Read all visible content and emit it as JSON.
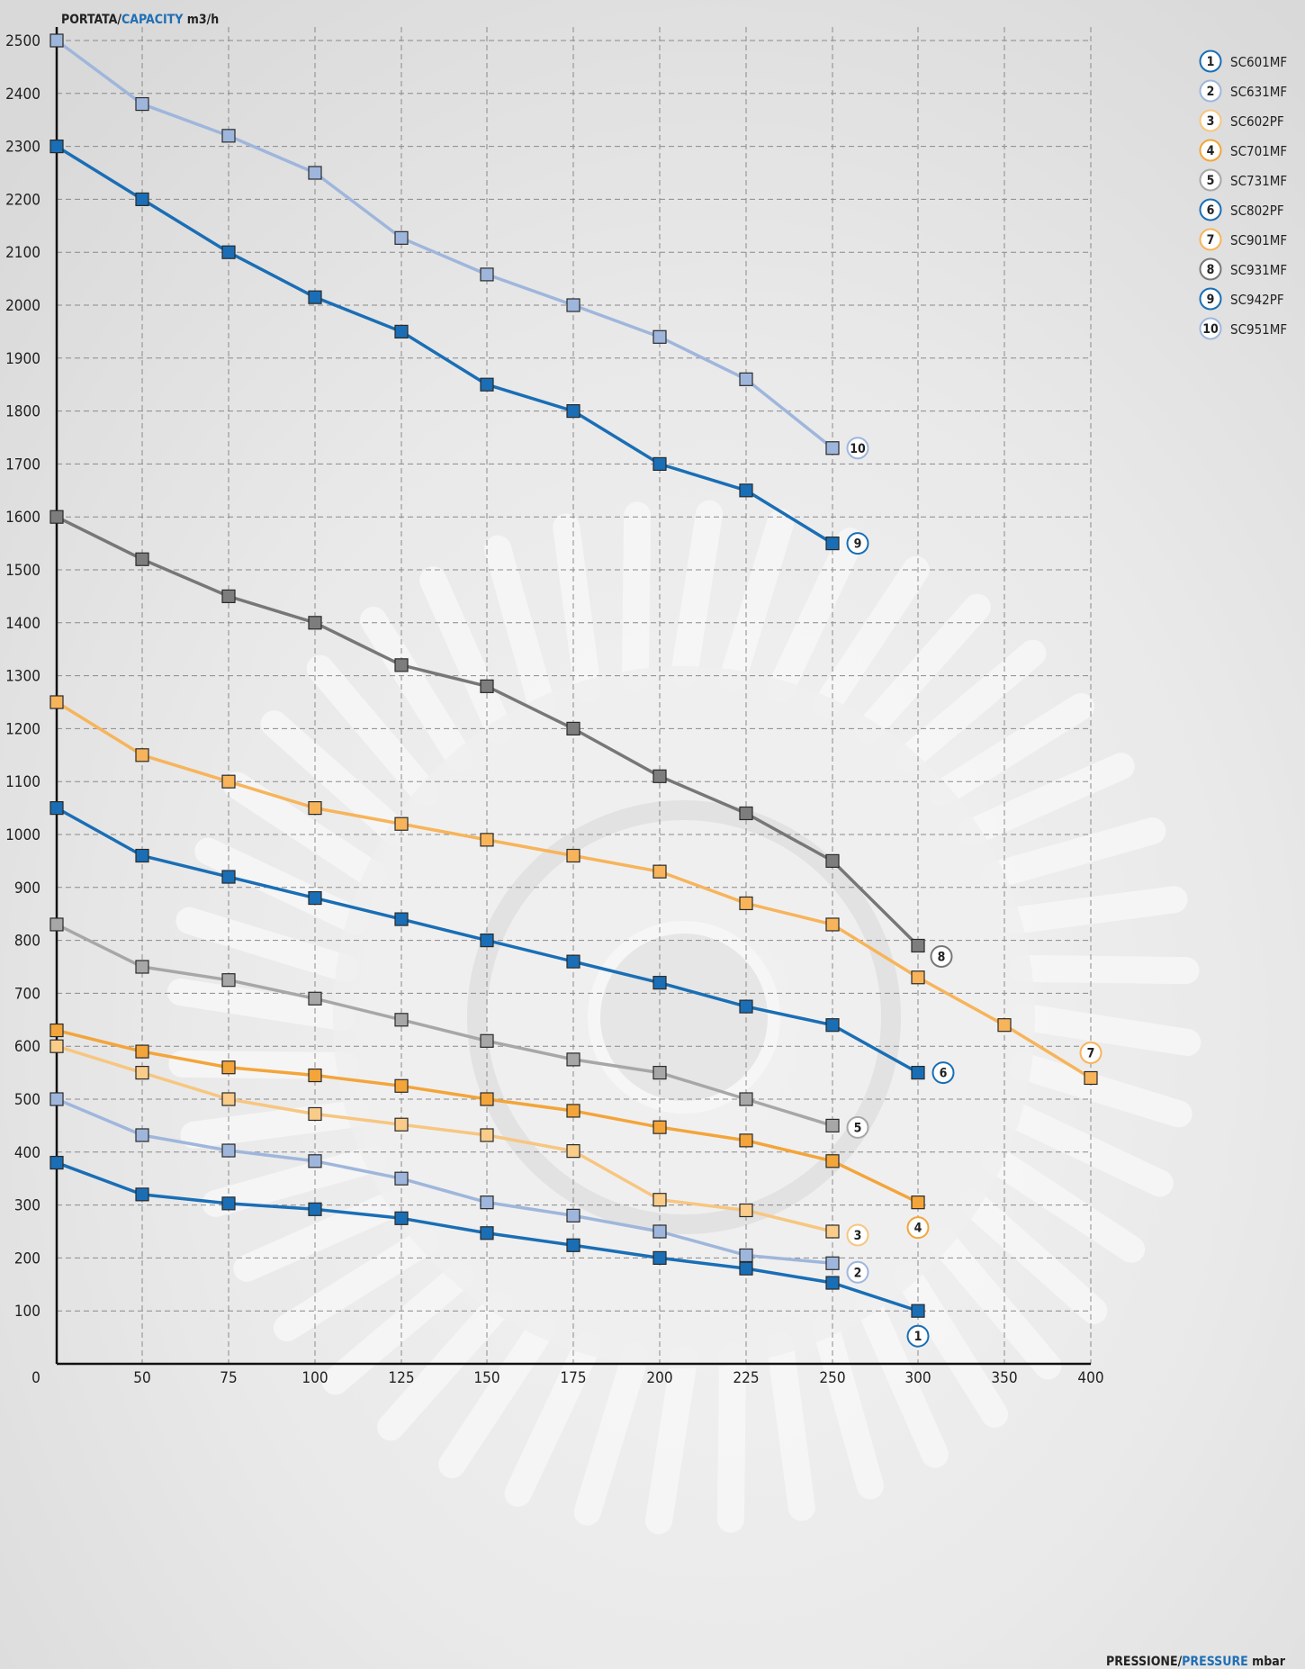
{
  "chart_data": {
    "type": "line",
    "ylabel": {
      "part1": "PORTATA/",
      "part2": "CAPACITY",
      "part3": " m3/h"
    },
    "xlabel": {
      "part1": "PRESSIONE/",
      "part2": "PRESSURE",
      "part3": " mbar"
    },
    "x_ticks": [
      0,
      50,
      75,
      100,
      125,
      150,
      175,
      200,
      225,
      250,
      300,
      350,
      400
    ],
    "y_ticks": [
      100,
      200,
      300,
      400,
      500,
      600,
      700,
      800,
      900,
      1000,
      1100,
      1200,
      1300,
      1400,
      1500,
      1600,
      1700,
      1800,
      1900,
      2000,
      2100,
      2200,
      2300,
      2400,
      2500
    ],
    "grid": true,
    "legend_position": "top-right",
    "series": [
      {
        "id": "1",
        "name": "SC601MF",
        "color": "#1a6eb5",
        "marker": "#1a6eb5",
        "x": [
          0,
          50,
          75,
          100,
          125,
          150,
          175,
          200,
          225,
          250,
          300
        ],
        "y": [
          380,
          320,
          303,
          292,
          275,
          247,
          224,
          200,
          180,
          153,
          100
        ]
      },
      {
        "id": "2",
        "name": "SC631MF",
        "color": "#9fb6dc",
        "marker": "#9fb6dc",
        "x": [
          0,
          50,
          75,
          100,
          125,
          150,
          175,
          200,
          225,
          250
        ],
        "y": [
          500,
          432,
          403,
          383,
          350,
          305,
          280,
          250,
          205,
          190
        ]
      },
      {
        "id": "3",
        "name": "SC602PF",
        "color": "#f7c680",
        "marker": "#f9cc8a",
        "x": [
          0,
          50,
          75,
          100,
          125,
          150,
          175,
          200,
          225,
          250
        ],
        "y": [
          600,
          550,
          500,
          472,
          452,
          432,
          402,
          310,
          290,
          250
        ]
      },
      {
        "id": "4",
        "name": "SC701MF",
        "color": "#f3a53a",
        "marker": "#f3a53a",
        "x": [
          0,
          50,
          75,
          100,
          125,
          150,
          175,
          200,
          225,
          250,
          300
        ],
        "y": [
          630,
          590,
          560,
          545,
          525,
          500,
          478,
          447,
          422,
          383,
          305
        ]
      },
      {
        "id": "5",
        "name": "SC731MF",
        "color": "#a7a7a7",
        "marker": "#a7a7a7",
        "x": [
          0,
          50,
          75,
          100,
          125,
          150,
          175,
          200,
          225,
          250
        ],
        "y": [
          830,
          750,
          725,
          690,
          650,
          610,
          575,
          550,
          500,
          450
        ]
      },
      {
        "id": "6",
        "name": "SC802PF",
        "color": "#1a6eb5",
        "marker": "#1a6eb5",
        "x": [
          0,
          50,
          75,
          100,
          125,
          150,
          175,
          200,
          225,
          250,
          300
        ],
        "y": [
          1050,
          960,
          920,
          880,
          840,
          800,
          760,
          720,
          675,
          640,
          550
        ]
      },
      {
        "id": "7",
        "name": "SC901MF",
        "color": "#f7b45a",
        "marker": "#f7b45a",
        "x": [
          0,
          50,
          75,
          100,
          125,
          150,
          175,
          200,
          225,
          250,
          300,
          350,
          400
        ],
        "y": [
          1250,
          1150,
          1100,
          1050,
          1020,
          990,
          960,
          930,
          870,
          830,
          730,
          640,
          540
        ]
      },
      {
        "id": "8",
        "name": "SC931MF",
        "color": "#777777",
        "marker": "#7d7d7d",
        "x": [
          0,
          50,
          75,
          100,
          125,
          150,
          175,
          200,
          225,
          250,
          300
        ],
        "y": [
          1600,
          1520,
          1450,
          1400,
          1320,
          1280,
          1200,
          1110,
          1040,
          950,
          790
        ]
      },
      {
        "id": "9",
        "name": "SC942PF",
        "color": "#1a6eb5",
        "marker": "#1a6eb5",
        "x": [
          0,
          50,
          75,
          100,
          125,
          150,
          175,
          200,
          225,
          250
        ],
        "y": [
          2300,
          2200,
          2100,
          2015,
          1950,
          1850,
          1800,
          1700,
          1650,
          1550
        ]
      },
      {
        "id": "10",
        "name": "SC951MF",
        "color": "#9fb6dc",
        "marker": "#9fb6dc",
        "x": [
          0,
          50,
          75,
          100,
          125,
          150,
          175,
          200,
          225,
          250
        ],
        "y": [
          2500,
          2380,
          2320,
          2250,
          2127,
          2058,
          2000,
          1940,
          1860,
          1730
        ]
      }
    ]
  }
}
